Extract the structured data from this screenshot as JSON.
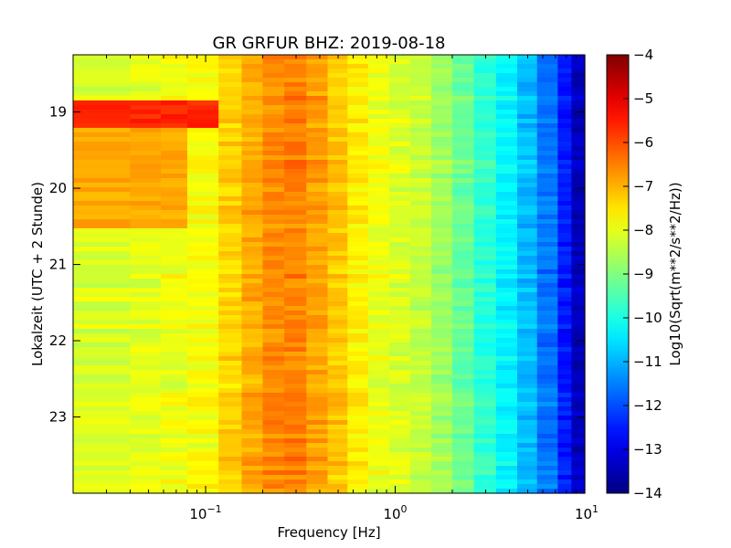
{
  "chart_data": {
    "type": "heatmap",
    "title": "GR GRFUR BHZ: 2019-08-18",
    "xlabel": "Frequency [Hz]",
    "ylabel": "Lokalzeit (UTC + 2 Stunde)",
    "colorbar_label": "Log10(Sqrt(m**2/s**2/Hz))",
    "x_scale": "log",
    "xlim": [
      0.02,
      10
    ],
    "x_ticks": [
      {
        "value": 0.1,
        "base": "10",
        "exp": "−1"
      },
      {
        "value": 1,
        "base": "10",
        "exp": "0"
      },
      {
        "value": 10,
        "base": "10",
        "exp": "1"
      }
    ],
    "ylim": [
      18.25,
      24.0
    ],
    "y_inverted": true,
    "y_ticks": [
      {
        "value": 19,
        "label": "19"
      },
      {
        "value": 20,
        "label": "20"
      },
      {
        "value": 21,
        "label": "21"
      },
      {
        "value": 22,
        "label": "22"
      },
      {
        "value": 23,
        "label": "23"
      }
    ],
    "clim": [
      -14,
      -4
    ],
    "colormap": "jet",
    "colorbar_ticks": [
      {
        "value": -4,
        "label": "−4"
      },
      {
        "value": -5,
        "label": "−5"
      },
      {
        "value": -6,
        "label": "−6"
      },
      {
        "value": -7,
        "label": "−7"
      },
      {
        "value": -8,
        "label": "−8"
      },
      {
        "value": -9,
        "label": "−9"
      },
      {
        "value": -10,
        "label": "−10"
      },
      {
        "value": -11,
        "label": "−11"
      },
      {
        "value": -12,
        "label": "−12"
      },
      {
        "value": -13,
        "label": "−13"
      },
      {
        "value": -14,
        "label": "−14"
      }
    ],
    "frequency_bins": [
      0.02,
      0.04,
      0.058,
      0.08,
      0.117,
      0.155,
      0.2,
      0.26,
      0.34,
      0.44,
      0.56,
      0.72,
      0.93,
      1.2,
      1.55,
      2.0,
      2.6,
      3.4,
      4.4,
      5.6,
      7.2,
      8.5,
      10
    ],
    "base_spectrum": [
      -8.1,
      -8.0,
      -7.9,
      -7.8,
      -7.3,
      -6.9,
      -6.6,
      -6.5,
      -6.8,
      -7.2,
      -7.6,
      -7.9,
      -8.1,
      -8.3,
      -8.7,
      -9.2,
      -9.8,
      -10.3,
      -10.9,
      -11.6,
      -12.5,
      -13.4
    ],
    "events": [
      {
        "time_start": 18.85,
        "time_end": 19.2,
        "freq_max": 0.12,
        "level": -5.6
      },
      {
        "time_start": 19.2,
        "time_end": 20.5,
        "freq_max": 0.1,
        "level": -6.9
      }
    ]
  }
}
